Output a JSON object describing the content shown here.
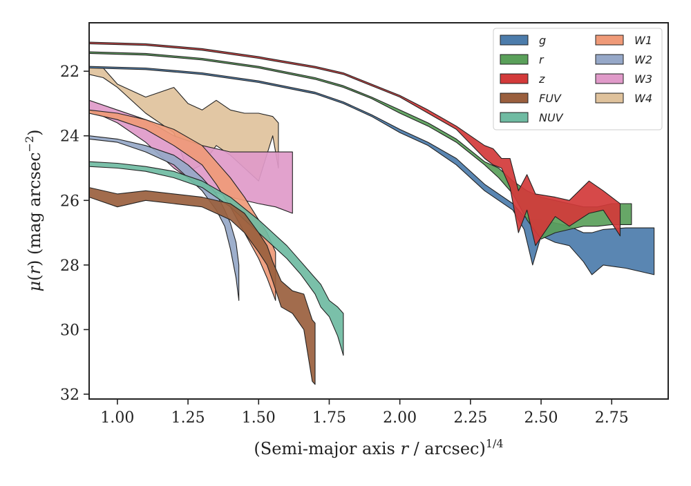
{
  "chart_data": {
    "type": "area",
    "title": "",
    "xlabel": "(Semi-major axis r / arcsec)^1/4",
    "ylabel": "μ(r) (mag arcsec^-2)",
    "xlim": [
      0.9,
      2.95
    ],
    "ylim": [
      32.15,
      20.5
    ],
    "y_inverted": true,
    "grid": false,
    "legend_position": "top-right",
    "legend_columns": 2,
    "x_ticks": [
      1.0,
      1.25,
      1.5,
      1.75,
      2.0,
      2.25,
      2.5,
      2.75
    ],
    "x_tick_labels": [
      "1.00",
      "1.25",
      "1.50",
      "1.75",
      "2.00",
      "2.25",
      "2.50",
      "2.75"
    ],
    "y_ticks": [
      22,
      24,
      26,
      28,
      30,
      32
    ],
    "y_tick_labels": [
      "22",
      "24",
      "26",
      "28",
      "30",
      "32"
    ],
    "series": [
      {
        "name": "g",
        "color": "#4c7cab",
        "x": [
          0.9,
          1.1,
          1.3,
          1.5,
          1.7,
          1.8,
          1.9,
          2.0,
          2.1,
          2.2,
          2.3,
          2.4,
          2.44,
          2.47,
          2.5,
          2.55,
          2.6,
          2.65,
          2.68,
          2.72,
          2.8,
          2.9
        ],
        "top": [
          21.85,
          21.9,
          22.05,
          22.3,
          22.65,
          22.95,
          23.35,
          23.8,
          24.2,
          24.7,
          25.5,
          26.1,
          26.5,
          26.6,
          26.6,
          26.7,
          26.8,
          27.0,
          27.0,
          26.9,
          26.85,
          26.85
        ],
        "bottom": [
          21.9,
          21.95,
          22.1,
          22.35,
          22.7,
          23.0,
          23.4,
          23.9,
          24.3,
          24.9,
          25.7,
          26.3,
          26.9,
          28.0,
          27.1,
          27.3,
          27.4,
          27.9,
          28.3,
          28.0,
          28.1,
          28.3
        ]
      },
      {
        "name": "r",
        "color": "#5aa05a",
        "x": [
          0.9,
          1.1,
          1.3,
          1.5,
          1.7,
          1.8,
          1.9,
          2.0,
          2.1,
          2.2,
          2.3,
          2.35,
          2.4,
          2.45,
          2.5,
          2.55,
          2.6,
          2.65,
          2.7,
          2.75,
          2.82
        ],
        "top": [
          21.4,
          21.45,
          21.6,
          21.85,
          22.2,
          22.45,
          22.8,
          23.2,
          23.6,
          24.1,
          24.8,
          25.0,
          25.4,
          25.7,
          25.9,
          26.0,
          26.1,
          26.2,
          26.2,
          26.1,
          26.1
        ],
        "bottom": [
          21.45,
          21.5,
          21.65,
          21.9,
          22.25,
          22.5,
          22.85,
          23.3,
          23.7,
          24.2,
          24.9,
          25.3,
          25.8,
          26.6,
          27.2,
          27.0,
          26.9,
          26.8,
          26.8,
          26.75,
          26.75
        ]
      },
      {
        "name": "z",
        "color": "#d33a3a",
        "x": [
          0.9,
          1.1,
          1.3,
          1.5,
          1.7,
          1.8,
          1.9,
          2.0,
          2.1,
          2.2,
          2.3,
          2.33,
          2.36,
          2.39,
          2.42,
          2.45,
          2.48,
          2.55,
          2.6,
          2.67,
          2.72,
          2.78
        ],
        "top": [
          21.1,
          21.15,
          21.3,
          21.55,
          21.85,
          22.05,
          22.4,
          22.75,
          23.2,
          23.7,
          24.3,
          24.4,
          24.7,
          24.7,
          25.7,
          25.2,
          25.8,
          25.9,
          26.0,
          25.4,
          25.7,
          26.1
        ],
        "bottom": [
          21.15,
          21.2,
          21.35,
          21.6,
          21.9,
          22.1,
          22.45,
          22.8,
          23.3,
          23.8,
          24.7,
          24.9,
          25.0,
          25.6,
          27.0,
          26.3,
          27.4,
          26.5,
          26.8,
          26.4,
          26.3,
          27.1
        ]
      },
      {
        "name": "FUV",
        "color": "#9a5f3e",
        "x": [
          0.9,
          1.0,
          1.1,
          1.2,
          1.3,
          1.4,
          1.45,
          1.5,
          1.53,
          1.55,
          1.58,
          1.62,
          1.66,
          1.69,
          1.7
        ],
        "top": [
          25.6,
          25.8,
          25.7,
          25.8,
          25.9,
          26.1,
          26.4,
          27.0,
          27.4,
          27.9,
          28.5,
          28.8,
          28.9,
          29.7,
          29.8
        ],
        "bottom": [
          25.9,
          26.2,
          26.0,
          26.1,
          26.2,
          26.6,
          27.0,
          27.6,
          28.0,
          28.5,
          29.3,
          29.5,
          30.0,
          31.6,
          31.7
        ]
      },
      {
        "name": "NUV",
        "color": "#6fbba2",
        "x": [
          0.9,
          1.0,
          1.1,
          1.2,
          1.3,
          1.4,
          1.5,
          1.55,
          1.6,
          1.65,
          1.7,
          1.72,
          1.75,
          1.78,
          1.8
        ],
        "top": [
          24.8,
          24.85,
          24.95,
          25.1,
          25.4,
          25.9,
          26.6,
          27.0,
          27.4,
          27.9,
          28.4,
          28.6,
          29.1,
          29.3,
          29.5
        ],
        "bottom": [
          24.95,
          25.0,
          25.1,
          25.3,
          25.6,
          26.2,
          27.0,
          27.4,
          27.8,
          28.3,
          28.9,
          29.3,
          29.6,
          30.2,
          30.8
        ]
      },
      {
        "name": "W1",
        "color": "#ef9a78",
        "x": [
          0.9,
          1.0,
          1.1,
          1.2,
          1.3,
          1.35,
          1.4,
          1.45,
          1.5,
          1.53,
          1.56
        ],
        "top": [
          23.2,
          23.3,
          23.5,
          23.8,
          24.3,
          24.8,
          25.3,
          25.9,
          26.6,
          27.0,
          27.6
        ],
        "bottom": [
          23.3,
          23.5,
          23.8,
          24.3,
          24.9,
          25.5,
          26.2,
          27.0,
          27.8,
          28.4,
          29.1
        ]
      },
      {
        "name": "W2",
        "color": "#96a8c8",
        "x": [
          0.9,
          1.0,
          1.1,
          1.2,
          1.25,
          1.3,
          1.35,
          1.38,
          1.4,
          1.42,
          1.43
        ],
        "top": [
          24.0,
          24.1,
          24.3,
          24.6,
          24.9,
          25.3,
          25.8,
          26.3,
          26.7,
          27.3,
          28.0
        ],
        "bottom": [
          24.1,
          24.2,
          24.5,
          24.9,
          25.3,
          25.7,
          26.3,
          26.8,
          27.5,
          28.4,
          29.1
        ]
      },
      {
        "name": "W3",
        "color": "#e09ac9",
        "x": [
          0.9,
          1.0,
          1.1,
          1.2,
          1.3,
          1.4,
          1.5,
          1.56,
          1.62
        ],
        "top": [
          22.9,
          23.2,
          23.5,
          24.0,
          24.3,
          24.5,
          24.5,
          24.5,
          24.5
        ],
        "bottom": [
          23.2,
          23.6,
          24.2,
          25.0,
          25.6,
          25.9,
          26.1,
          26.2,
          26.4
        ]
      },
      {
        "name": "W4",
        "color": "#dfc29c",
        "x": [
          0.9,
          0.95,
          1.0,
          1.1,
          1.2,
          1.25,
          1.3,
          1.35,
          1.4,
          1.45,
          1.5,
          1.55,
          1.57
        ],
        "top": [
          21.9,
          21.9,
          22.4,
          22.8,
          22.5,
          23.0,
          23.2,
          22.9,
          23.2,
          23.3,
          23.3,
          23.4,
          23.6
        ],
        "bottom": [
          22.1,
          22.2,
          22.5,
          23.3,
          23.9,
          25.1,
          24.9,
          24.3,
          24.6,
          25.0,
          25.4,
          24.0,
          25.0
        ]
      }
    ],
    "boundary_line_color": "#222222"
  }
}
